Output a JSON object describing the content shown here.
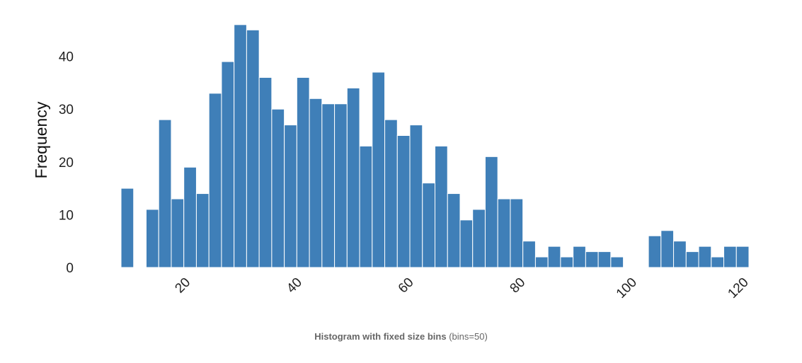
{
  "chart_data": {
    "type": "bar",
    "subtype": "histogram",
    "xlabel": "",
    "ylabel": "Frequency",
    "caption_bold": "Histogram with fixed size bins",
    "caption_normal": "(bins=50)",
    "bar_color": "#3f7fb8",
    "bins": 50,
    "x_start": 9.0,
    "bin_width": 2.25,
    "values": [
      15,
      0,
      11,
      28,
      13,
      19,
      14,
      33,
      39,
      46,
      45,
      36,
      30,
      27,
      36,
      32,
      31,
      31,
      34,
      23,
      37,
      28,
      25,
      27,
      16,
      23,
      14,
      9,
      11,
      21,
      13,
      13,
      5,
      2,
      4,
      2,
      4,
      3,
      3,
      2,
      0,
      0,
      6,
      7,
      5,
      3,
      4,
      2,
      4,
      4
    ],
    "xlim": [
      9.0,
      121.5
    ],
    "ylim": [
      0,
      46
    ],
    "x_ticks": [
      20,
      40,
      60,
      80,
      100,
      120
    ],
    "y_ticks": [
      0,
      10,
      20,
      30,
      40
    ],
    "x_tick_rotation": -45,
    "grid": false
  }
}
